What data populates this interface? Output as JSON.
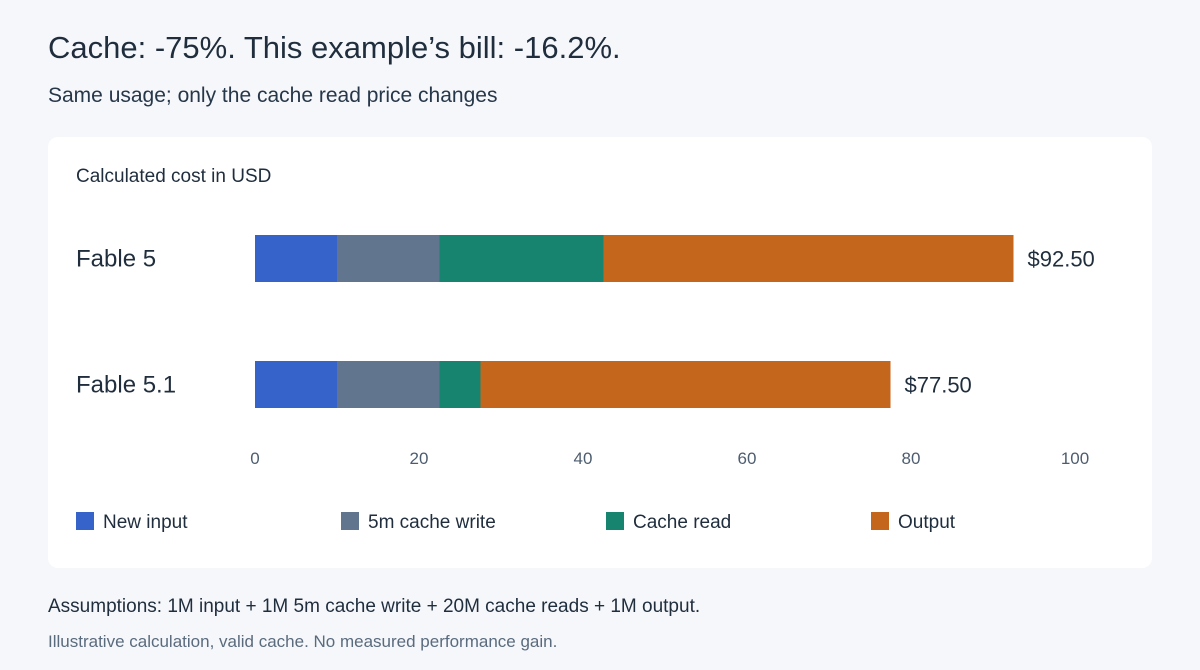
{
  "header": {
    "title": "Cache: -75%. This example’s bill: -16.2%.",
    "subtitle": "Same usage; only the cache read price changes"
  },
  "footer": {
    "assumptions": "Assumptions: 1M input + 1M 5m cache write + 20M cache reads + 1M output.",
    "note": "Illustrative calculation, valid cache. No measured performance gain."
  },
  "chart_data": {
    "type": "bar",
    "orientation": "horizontal",
    "stacked": true,
    "title": "Calculated cost in USD",
    "categories": [
      "Fable 5",
      "Fable 5.1"
    ],
    "totals_labels": [
      "$92.50",
      "$77.50"
    ],
    "series": [
      {
        "name": "New input",
        "color": "#3563c9",
        "values": [
          10,
          10
        ]
      },
      {
        "name": "5m cache write",
        "color": "#62758f",
        "values": [
          12.5,
          12.5
        ]
      },
      {
        "name": "Cache read",
        "color": "#178470",
        "values": [
          20,
          5
        ]
      },
      {
        "name": "Output",
        "color": "#c4661c",
        "values": [
          50,
          50
        ]
      }
    ],
    "xlim": [
      0,
      100
    ],
    "xticks": [
      0,
      20,
      40,
      60,
      80,
      100
    ],
    "grid": false,
    "legend_position": "bottom"
  }
}
